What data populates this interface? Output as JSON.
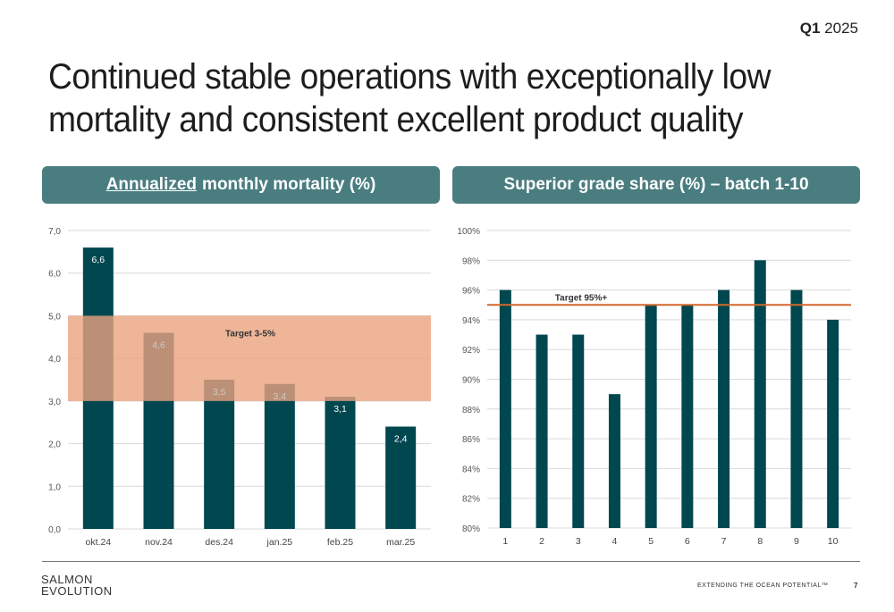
{
  "header": {
    "quarter_bold": "Q1",
    "quarter_year": "2025",
    "title": "Continued stable operations with exceptionally low mortality and consistent excellent product quality"
  },
  "left_panel": {
    "heading_underlined": "Annualized",
    "heading_rest": "monthly mortality (%)"
  },
  "right_panel": {
    "heading": "Superior grade share (%) – batch 1-10"
  },
  "footer": {
    "logo_line1": "SALMON",
    "logo_line2": "EVOLUTION",
    "tagline": "EXTENDING THE OCEAN POTENTIAL™",
    "page": "7"
  },
  "colors": {
    "bar": "#004750",
    "target_band": "#eba27f",
    "target_line": "#d2692b",
    "heading_bg": "#4a7d80"
  },
  "chart_data": [
    {
      "type": "bar",
      "title": "",
      "categories": [
        "okt.24",
        "nov.24",
        "des.24",
        "jan.25",
        "feb.25",
        "mar.25"
      ],
      "values": [
        6.6,
        4.6,
        3.5,
        3.4,
        3.1,
        2.4
      ],
      "data_labels": [
        "6,6",
        "4,6",
        "3,5",
        "3,4",
        "3,1",
        "2,4"
      ],
      "ylim": [
        0,
        7
      ],
      "yticks": [
        "0,0",
        "1,0",
        "2,0",
        "3,0",
        "4,0",
        "5,0",
        "6,0",
        "7,0"
      ],
      "target_band": [
        3,
        5
      ],
      "target_label": "Target 3-5%",
      "grid": true
    },
    {
      "type": "bar",
      "title": "",
      "categories": [
        "1",
        "2",
        "3",
        "4",
        "5",
        "6",
        "7",
        "8",
        "9",
        "10"
      ],
      "values": [
        96,
        93,
        93,
        89,
        95,
        95,
        96,
        98,
        96,
        94
      ],
      "ylim": [
        80,
        100
      ],
      "yticks": [
        "80%",
        "82%",
        "84%",
        "86%",
        "88%",
        "90%",
        "92%",
        "94%",
        "96%",
        "98%",
        "100%"
      ],
      "target_line": 95,
      "target_label": "Target 95%+",
      "grid": true
    }
  ]
}
